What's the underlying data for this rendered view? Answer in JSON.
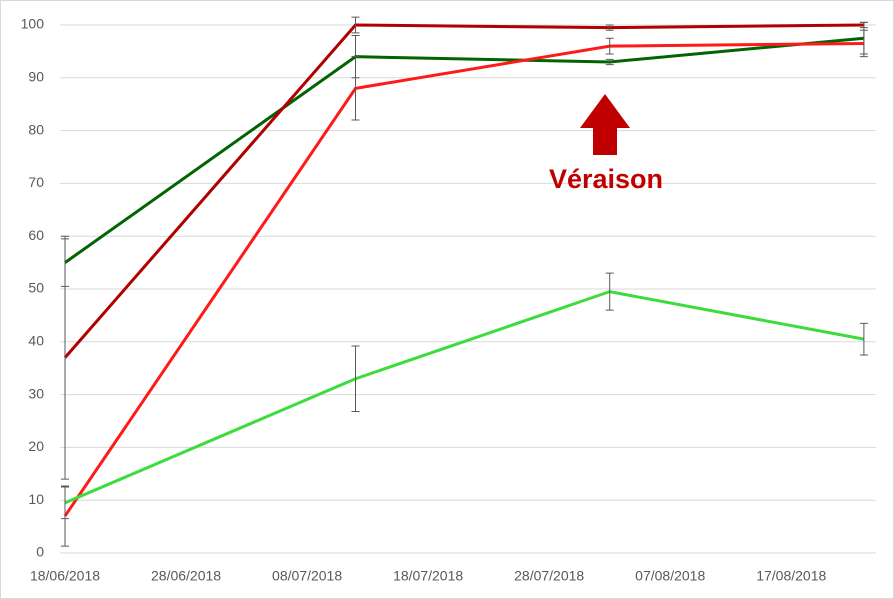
{
  "chart_data": {
    "type": "line",
    "annotation": "Véraison",
    "x": [
      "2018-06-18",
      "2018-07-12",
      "2018-08-02",
      "2018-08-23"
    ],
    "xlim": [
      "2018-06-18",
      "2018-08-24"
    ],
    "xticks": [
      {
        "value": "2018-06-18",
        "label": "18/06/2018"
      },
      {
        "value": "2018-06-28",
        "label": "28/06/2018"
      },
      {
        "value": "2018-07-08",
        "label": "08/07/2018"
      },
      {
        "value": "2018-07-18",
        "label": "18/07/2018"
      },
      {
        "value": "2018-07-28",
        "label": "28/07/2018"
      },
      {
        "value": "2018-08-07",
        "label": "07/08/2018"
      },
      {
        "value": "2018-08-17",
        "label": "17/08/2018"
      }
    ],
    "ylim": [
      0,
      100
    ],
    "yticks": [
      0,
      10,
      20,
      30,
      40,
      50,
      60,
      70,
      80,
      90,
      100
    ],
    "grid": true,
    "series": [
      {
        "color": "#006400",
        "values": [
          55,
          94,
          93,
          97.5
        ],
        "errors": [
          4.5,
          4,
          0.5,
          3
        ]
      },
      {
        "color": "#b00000",
        "values": [
          37,
          100,
          99.5,
          100
        ],
        "errors": [
          23,
          1.5,
          0.5,
          0.5
        ]
      },
      {
        "color": "#ff1a1a",
        "values": [
          7,
          88,
          96,
          96.5
        ],
        "errors": [
          5.7,
          6,
          1.5,
          2.5
        ]
      },
      {
        "color": "#3ddc3d",
        "values": [
          9.5,
          33,
          49.5,
          40.5
        ],
        "errors": [
          3,
          6.2,
          3.5,
          3
        ]
      }
    ]
  }
}
